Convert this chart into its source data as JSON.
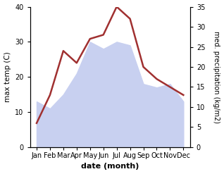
{
  "months": [
    "Jan",
    "Feb",
    "Mar",
    "Apr",
    "May",
    "Jun",
    "Jul",
    "Aug",
    "Sep",
    "Oct",
    "Nov",
    "Dec"
  ],
  "x": [
    1,
    2,
    3,
    4,
    5,
    6,
    7,
    8,
    9,
    10,
    11,
    12
  ],
  "temperature": [
    13,
    11,
    15,
    21,
    30,
    28,
    30,
    29,
    18,
    17,
    18,
    13
  ],
  "precipitation": [
    6,
    13,
    24,
    21,
    27,
    28,
    35,
    32,
    20,
    17,
    15,
    13
  ],
  "precip_color": "#a03030",
  "temp_fill_color": "#c8d0f0",
  "left_ylim": [
    0,
    40
  ],
  "right_ylim": [
    0,
    35
  ],
  "left_yticks": [
    0,
    10,
    20,
    30,
    40
  ],
  "right_yticks": [
    0,
    5,
    10,
    15,
    20,
    25,
    30,
    35
  ],
  "xlabel": "date (month)",
  "ylabel_left": "max temp (C)",
  "ylabel_right": "med. precipitation (kg/m2)",
  "background_color": "#ffffff"
}
